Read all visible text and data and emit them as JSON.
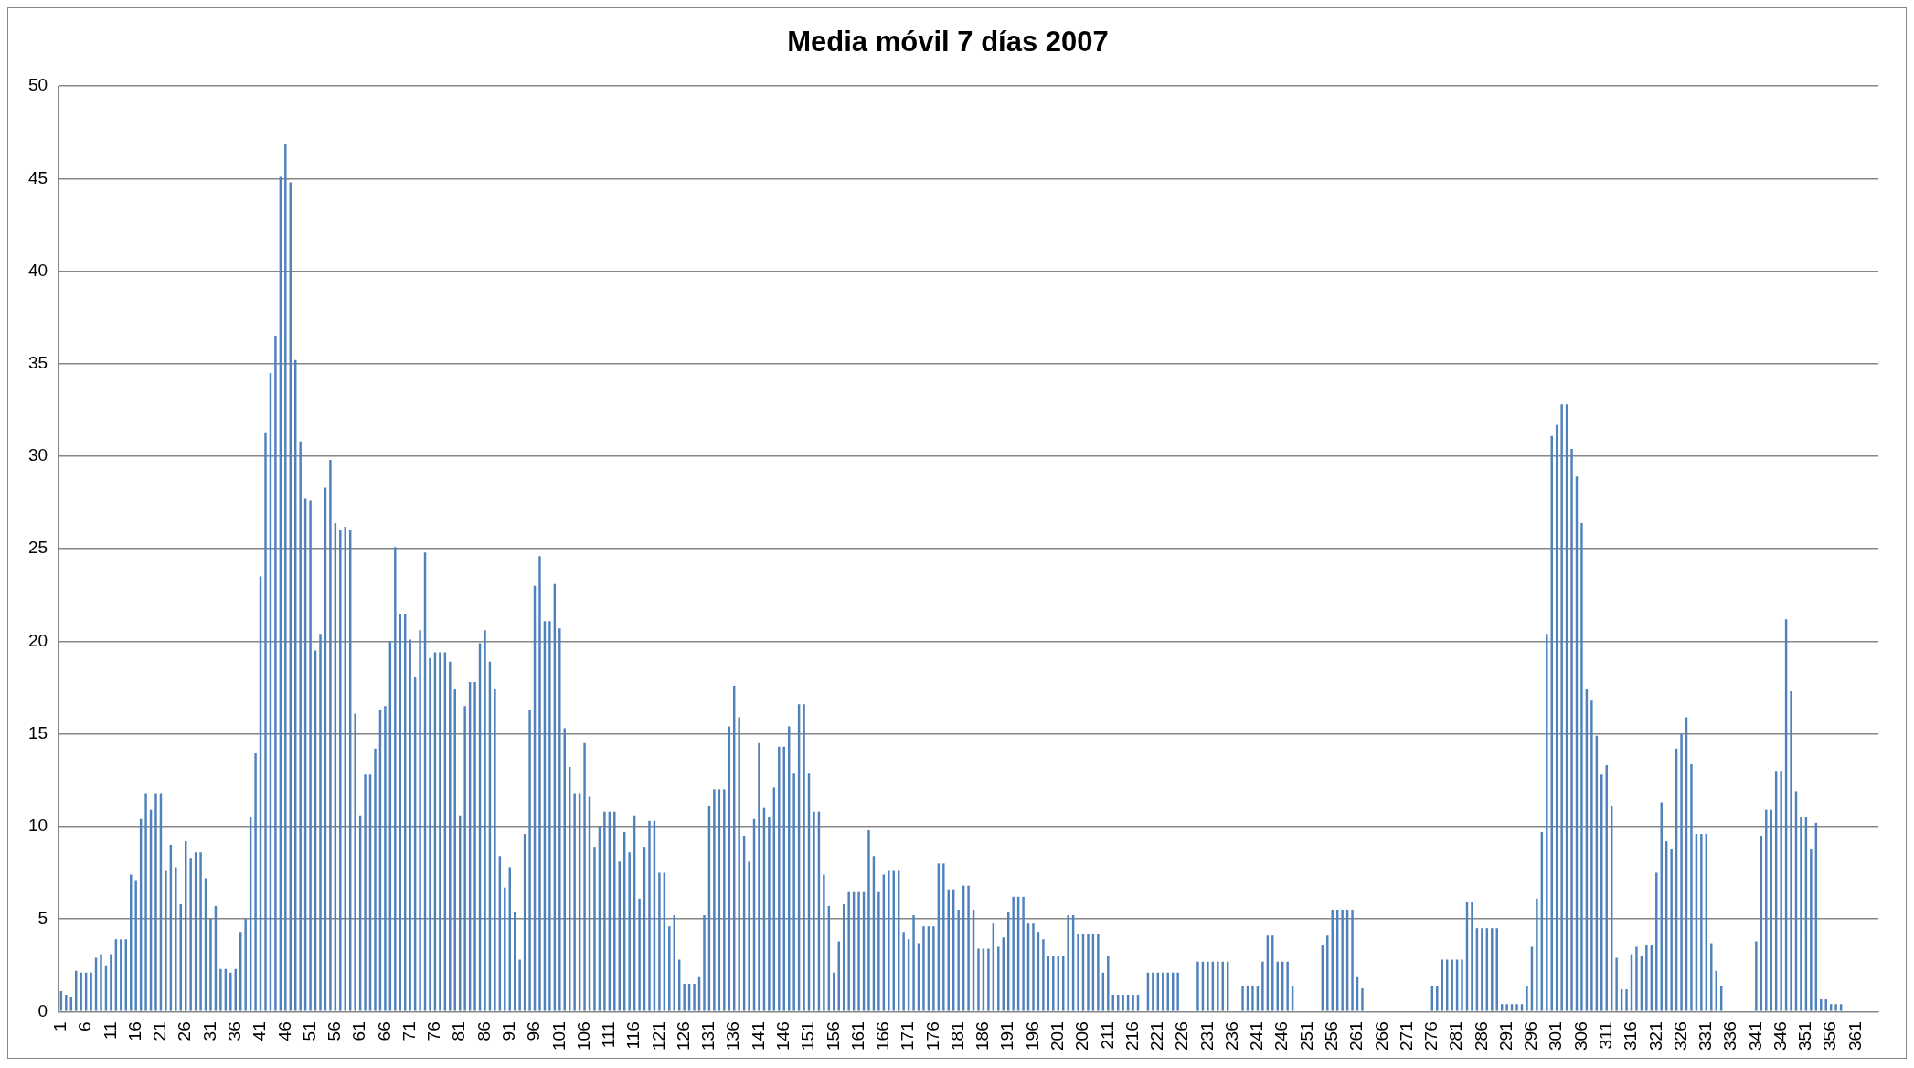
{
  "chart_data": {
    "type": "bar",
    "title": "Media móvil 7 días 2007",
    "categories": [
      "1",
      null,
      null,
      null,
      null,
      "6",
      null,
      null,
      null,
      null,
      "11",
      null,
      null,
      null,
      null,
      "16",
      null,
      null,
      null,
      null,
      "21",
      null,
      null,
      null,
      null,
      "26",
      null,
      null,
      null,
      null,
      "31",
      null,
      null,
      null,
      null,
      "36",
      null,
      null,
      null,
      null,
      "41",
      null,
      null,
      null,
      null,
      "46",
      null,
      null,
      null,
      null,
      "51",
      null,
      null,
      null,
      null,
      "56",
      null,
      null,
      null,
      null,
      "61",
      null,
      null,
      null,
      null,
      "66",
      null,
      null,
      null,
      null,
      "71",
      null,
      null,
      null,
      null,
      "76",
      null,
      null,
      null,
      null,
      "81",
      null,
      null,
      null,
      null,
      "86",
      null,
      null,
      null,
      null,
      "91",
      null,
      null,
      null,
      null,
      "96",
      null,
      null,
      null,
      null,
      "101",
      null,
      null,
      null,
      null,
      "106",
      null,
      null,
      null,
      null,
      "111",
      null,
      null,
      null,
      null,
      "116",
      null,
      null,
      null,
      null,
      "121",
      null,
      null,
      null,
      null,
      "126",
      null,
      null,
      null,
      null,
      "131",
      null,
      null,
      null,
      null,
      "136",
      null,
      null,
      null,
      null,
      "141",
      null,
      null,
      null,
      null,
      "146",
      null,
      null,
      null,
      null,
      "151",
      null,
      null,
      null,
      null,
      "156",
      null,
      null,
      null,
      null,
      "161",
      null,
      null,
      null,
      null,
      "166",
      null,
      null,
      null,
      null,
      "171",
      null,
      null,
      null,
      null,
      "176",
      null,
      null,
      null,
      null,
      "181",
      null,
      null,
      null,
      null,
      "186",
      null,
      null,
      null,
      null,
      "191",
      null,
      null,
      null,
      null,
      "196",
      null,
      null,
      null,
      null,
      "201",
      null,
      null,
      null,
      null,
      "206",
      null,
      null,
      null,
      null,
      "211",
      null,
      null,
      null,
      null,
      "216",
      null,
      null,
      null,
      null,
      "221",
      null,
      null,
      null,
      null,
      "226",
      null,
      null,
      null,
      null,
      "231",
      null,
      null,
      null,
      null,
      "236",
      null,
      null,
      null,
      null,
      "241",
      null,
      null,
      null,
      null,
      "246",
      null,
      null,
      null,
      null,
      "251",
      null,
      null,
      null,
      null,
      "256",
      null,
      null,
      null,
      null,
      "261",
      null,
      null,
      null,
      null,
      "266",
      null,
      null,
      null,
      null,
      "271",
      null,
      null,
      null,
      null,
      "276",
      null,
      null,
      null,
      null,
      "281",
      null,
      null,
      null,
      null,
      "286",
      null,
      null,
      null,
      null,
      "291",
      null,
      null,
      null,
      null,
      "296",
      null,
      null,
      null,
      null,
      "301",
      null,
      null,
      null,
      null,
      "306",
      null,
      null,
      null,
      null,
      "311",
      null,
      null,
      null,
      null,
      "316",
      null,
      null,
      null,
      null,
      "321",
      null,
      null,
      null,
      null,
      "326",
      null,
      null,
      null,
      null,
      "331",
      null,
      null,
      null,
      null,
      "336",
      null,
      null,
      null,
      null,
      "341",
      null,
      null,
      null,
      null,
      "346",
      null,
      null,
      null,
      null,
      "351",
      null,
      null,
      null,
      null,
      "356",
      null,
      null,
      null,
      null,
      "361",
      null,
      null,
      null,
      null
    ],
    "values": [
      1.1,
      0.9,
      0.8,
      2.2,
      2.1,
      2.1,
      2.1,
      2.9,
      3.1,
      2.5,
      3.1,
      3.9,
      3.9,
      3.9,
      7.4,
      7.1,
      10.4,
      11.8,
      10.9,
      11.8,
      11.8,
      7.6,
      9.0,
      7.8,
      5.8,
      9.2,
      8.3,
      8.6,
      8.6,
      7.2,
      5.0,
      5.7,
      2.3,
      2.3,
      2.1,
      2.3,
      4.3,
      5.0,
      10.5,
      14.0,
      23.5,
      31.3,
      34.5,
      36.5,
      45.1,
      46.9,
      44.8,
      35.2,
      30.8,
      27.7,
      27.6,
      19.5,
      20.4,
      28.3,
      29.8,
      26.4,
      26.0,
      26.2,
      26.0,
      16.1,
      10.6,
      12.8,
      12.8,
      14.2,
      16.3,
      16.5,
      20.0,
      25.1,
      21.5,
      21.5,
      20.1,
      18.1,
      20.6,
      24.8,
      19.1,
      19.4,
      19.4,
      19.4,
      18.9,
      17.4,
      10.6,
      16.5,
      17.8,
      17.8,
      19.9,
      20.6,
      18.9,
      17.4,
      8.4,
      6.7,
      7.8,
      5.4,
      2.8,
      9.6,
      16.3,
      23.0,
      24.6,
      21.1,
      21.1,
      23.1,
      20.7,
      15.3,
      13.2,
      11.8,
      11.8,
      14.5,
      11.6,
      8.9,
      10.0,
      10.8,
      10.8,
      10.8,
      8.1,
      9.7,
      8.6,
      10.6,
      6.1,
      8.9,
      10.3,
      10.3,
      7.5,
      7.5,
      4.6,
      5.2,
      2.8,
      1.5,
      1.5,
      1.5,
      1.9,
      5.2,
      11.1,
      12.0,
      12.0,
      12.0,
      15.4,
      17.6,
      15.9,
      9.5,
      8.1,
      10.4,
      14.5,
      11.0,
      10.5,
      12.1,
      14.3,
      14.3,
      15.4,
      12.9,
      16.6,
      16.6,
      12.9,
      10.8,
      10.8,
      7.4,
      5.7,
      2.1,
      3.8,
      5.8,
      6.5,
      6.5,
      6.5,
      6.5,
      9.8,
      8.4,
      6.5,
      7.4,
      7.6,
      7.6,
      7.6,
      4.3,
      3.9,
      5.2,
      3.7,
      4.6,
      4.6,
      4.6,
      8.0,
      8.0,
      6.6,
      6.6,
      5.5,
      6.8,
      6.8,
      5.5,
      3.4,
      3.4,
      3.4,
      4.8,
      3.5,
      4.0,
      5.4,
      6.2,
      6.2,
      6.2,
      4.8,
      4.8,
      4.3,
      3.9,
      3.0,
      3.0,
      3.0,
      3.0,
      5.2,
      5.2,
      4.2,
      4.2,
      4.2,
      4.2,
      4.2,
      2.1,
      3.0,
      0.9,
      0.9,
      0.9,
      0.9,
      0.9,
      0.9,
      0,
      2.1,
      2.1,
      2.1,
      2.1,
      2.1,
      2.1,
      2.1,
      0,
      0,
      0,
      2.7,
      2.7,
      2.7,
      2.7,
      2.7,
      2.7,
      2.7,
      0,
      0,
      1.4,
      1.4,
      1.4,
      1.4,
      2.7,
      4.1,
      4.1,
      2.7,
      2.7,
      2.7,
      1.4,
      0,
      0,
      0,
      0,
      0,
      3.6,
      4.1,
      5.5,
      5.5,
      5.5,
      5.5,
      5.5,
      1.9,
      1.3,
      0,
      0,
      0,
      0,
      0,
      0,
      0,
      0,
      0,
      0,
      0,
      0,
      0,
      1.4,
      1.4,
      2.8,
      2.8,
      2.8,
      2.8,
      2.8,
      5.9,
      5.9,
      4.5,
      4.5,
      4.5,
      4.5,
      4.5,
      0.4,
      0.4,
      0.4,
      0.4,
      0.4,
      1.4,
      3.5,
      6.1,
      9.7,
      20.4,
      31.1,
      31.7,
      32.8,
      32.8,
      30.4,
      28.9,
      26.4,
      17.4,
      16.8,
      14.9,
      12.8,
      13.3,
      11.1,
      2.9,
      1.2,
      1.2,
      3.1,
      3.5,
      3.0,
      3.6,
      3.6,
      7.5,
      11.3,
      9.2,
      8.8,
      14.2,
      15.0,
      15.9,
      13.4,
      9.6,
      9.6,
      9.6,
      3.7,
      2.2,
      1.4,
      0,
      0,
      0,
      0,
      0,
      0,
      3.8,
      9.5,
      10.9,
      10.9,
      13.0,
      13.0,
      21.2,
      17.3,
      11.9,
      10.5,
      10.5,
      8.8,
      10.2,
      0.7,
      0.7,
      0.4,
      0.4,
      0.4,
      0,
      0,
      0,
      0,
      0,
      0,
      0
    ],
    "color": "#4f81bd",
    "ylim": [
      0,
      50
    ],
    "yticks": [
      0,
      5,
      10,
      15,
      20,
      25,
      30,
      35,
      40,
      45,
      50
    ],
    "grid": "y"
  }
}
